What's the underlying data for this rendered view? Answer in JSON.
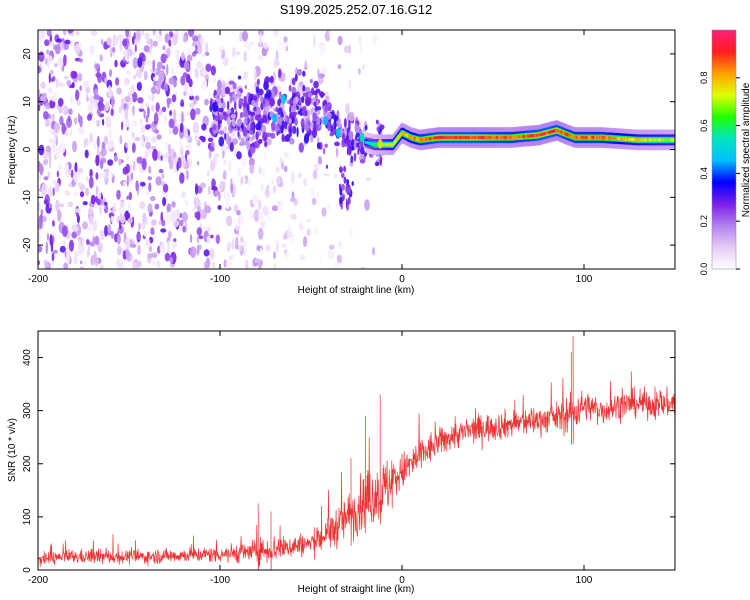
{
  "figure_title": "S199.2025.252.07.16.G12",
  "chart_data": [
    {
      "type": "heatmap",
      "xlabel": "Height of straight line (km)",
      "ylabel": "Frequency (Hz)",
      "xlim": [
        -200,
        150
      ],
      "ylim": [
        -25,
        25
      ],
      "x_ticks": [
        -200,
        -100,
        0,
        100
      ],
      "x_tick_labels": [
        "-200",
        "-100",
        "0",
        "100"
      ],
      "y_ticks": [
        -20,
        -10,
        0,
        10,
        20
      ],
      "y_tick_labels": [
        "-20",
        "-10",
        "0",
        "10",
        "20"
      ],
      "colorbar": {
        "label": "Normalized spectral amplitude",
        "range": [
          0,
          1
        ],
        "ticks": [
          0.0,
          0.2,
          0.4,
          0.6,
          0.8
        ],
        "tick_labels": [
          "0.0",
          "0.2",
          "0.4",
          "0.6",
          "0.8"
        ],
        "colors": [
          "#ffffff",
          "#e6ccf5",
          "#b380ee",
          "#7a1fe8",
          "#0000ff",
          "#00bfff",
          "#00e5c0",
          "#22ff00",
          "#e0ff00",
          "#ffa000",
          "#ff1e1e",
          "#ff1f7a"
        ]
      },
      "description_series": [
        {
          "name": "noise",
          "x_range": [
            -200,
            -100
          ],
          "y_range": [
            -25,
            25
          ],
          "typical_amplitude": 0.15
        },
        {
          "name": "signal_track",
          "x": [
            -100,
            -80,
            -60,
            -45,
            -35,
            -25,
            -15,
            -5,
            0,
            5,
            10,
            20,
            40,
            60,
            75,
            85,
            95,
            110,
            130,
            150
          ],
          "frequency": [
            7,
            7,
            9,
            8,
            4,
            2,
            1,
            1,
            3.5,
            2.5,
            2,
            2.5,
            2.5,
            2.5,
            3,
            4,
            2.5,
            2.5,
            2,
            2
          ],
          "amplitude": [
            0.2,
            0.25,
            0.3,
            0.25,
            0.3,
            0.35,
            0.6,
            0.75,
            0.8,
            0.8,
            0.85,
            0.9,
            0.9,
            0.85,
            0.9,
            0.9,
            0.85,
            0.85,
            0.75,
            0.7
          ]
        }
      ]
    },
    {
      "type": "line",
      "xlabel": "Height of straight line (km)",
      "ylabel": "SNR (10 * v/v)",
      "xlim": [
        -200,
        150
      ],
      "ylim": [
        0,
        450
      ],
      "x_ticks": [
        -200,
        -100,
        0,
        100
      ],
      "x_tick_labels": [
        "-200",
        "-100",
        "0",
        "100"
      ],
      "y_ticks": [
        0,
        100,
        200,
        300,
        400
      ],
      "y_tick_labels": [
        "0",
        "100",
        "200",
        "300",
        "400"
      ],
      "series": [
        {
          "name": "SNR",
          "color": "#ee3333",
          "x": [
            -200,
            -180,
            -160,
            -140,
            -120,
            -100,
            -80,
            -70,
            -60,
            -50,
            -40,
            -30,
            -20,
            -10,
            -5,
            0,
            10,
            20,
            30,
            40,
            50,
            60,
            70,
            80,
            90,
            95,
            100,
            110,
            120,
            130,
            140,
            150
          ],
          "y": [
            20,
            25,
            25,
            25,
            28,
            30,
            35,
            40,
            45,
            50,
            70,
            100,
            130,
            150,
            170,
            185,
            215,
            240,
            255,
            265,
            270,
            275,
            280,
            285,
            290,
            300,
            310,
            300,
            310,
            315,
            310,
            315
          ],
          "noise_amplitude": [
            15,
            15,
            15,
            15,
            15,
            18,
            25,
            30,
            25,
            25,
            40,
            50,
            60,
            65,
            60,
            40,
            40,
            30,
            30,
            30,
            30,
            30,
            30,
            30,
            35,
            45,
            30,
            30,
            30,
            30,
            30,
            30
          ],
          "peaks": [
            {
              "x": -79,
              "y": 125
            },
            {
              "x": -72,
              "y": 110
            },
            {
              "x": -28,
              "y": 210
            },
            {
              "x": -20,
              "y": 290
            },
            {
              "x": -12,
              "y": 330
            },
            {
              "x": 94,
              "y": 440
            },
            {
              "x": 93,
              "y": 410
            }
          ]
        }
      ]
    }
  ]
}
